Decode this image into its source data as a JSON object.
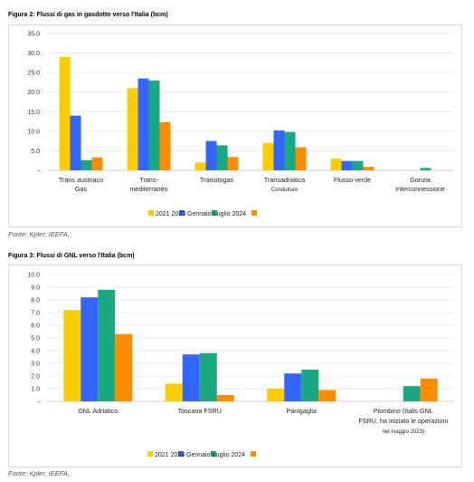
{
  "colors": {
    "s2021": "#FFCC00",
    "s2023": "#3366FF",
    "s2023gl": "#1AA882",
    "s2024": "#FF8C00"
  },
  "figures": [
    {
      "title": "Figura 2: Flussi di gas in gasdotto verso l'Italia (bcm)",
      "source": "Fonte: Kpler, IEEFA.",
      "chart_data": {
        "type": "bar",
        "categories": [
          [
            "Trans austriaco",
            "Gas"
          ],
          [
            "Trans-",
            "mediterraneo"
          ],
          [
            "Transitogas"
          ],
          [
            "Transadriatica",
            "Condutture"
          ],
          [
            "Flusso verde"
          ],
          [
            "Gorizia",
            "Interconnessione"
          ]
        ],
        "series": [
          {
            "name": "2021",
            "values": [
              29.0,
              21.0,
              2.0,
              7.0,
              3.0,
              0.0
            ]
          },
          {
            "name": "2023",
            "values": [
              14.0,
              23.5,
              7.5,
              10.2,
              2.4,
              0.0
            ]
          },
          {
            "name": "2023 Gennaio-Luglio",
            "values": [
              2.6,
              23.0,
              6.4,
              9.8,
              2.4,
              0.6
            ]
          },
          {
            "name": "2024",
            "values": [
              3.3,
              12.3,
              3.4,
              5.9,
              0.9,
              0.0
            ]
          }
        ],
        "ylim": [
          0,
          35
        ],
        "yticks": [
          "-",
          "5.0",
          "10.0",
          "15.0",
          "20.0",
          "25.0",
          "30.0",
          "35.0"
        ],
        "legend_text": "2021 2023 Gennaio-Luglio 2024",
        "grid": true,
        "legend": "bottom"
      }
    },
    {
      "title": "Figura 3: Flussi di GNL verso l'Italia (bcm)",
      "source": "Fonte: Kpler, IEEFA.",
      "chart_data": {
        "type": "bar",
        "categories": [
          [
            "GNL Adriatico"
          ],
          [
            "Toscana FSRU"
          ],
          [
            "Panigaglia"
          ],
          [
            "Piombino (Italis GNL",
            "FSRU, ha iniziato le operazioni",
            "nel maggio 2023)"
          ]
        ],
        "series": [
          {
            "name": "2021",
            "values": [
              7.2,
              1.4,
              1.0,
              0.0
            ]
          },
          {
            "name": "2023",
            "values": [
              8.2,
              3.7,
              2.2,
              0.0
            ]
          },
          {
            "name": "2023 Gennaio-Luglio",
            "values": [
              8.8,
              3.8,
              2.5,
              1.2
            ]
          },
          {
            "name": "2024",
            "values": [
              5.3,
              0.5,
              0.9,
              1.8
            ]
          }
        ],
        "ylim": [
          0,
          10
        ],
        "yticks": [
          "-",
          "1.0",
          "2.0",
          "3.0",
          "4.0",
          "5.0",
          "6.0",
          "7.0",
          "8.0",
          "9.0",
          "10.0"
        ],
        "legend_text": "2021 2023 Gennaio-Luglio 2024",
        "grid": true,
        "legend": "bottom"
      }
    }
  ]
}
